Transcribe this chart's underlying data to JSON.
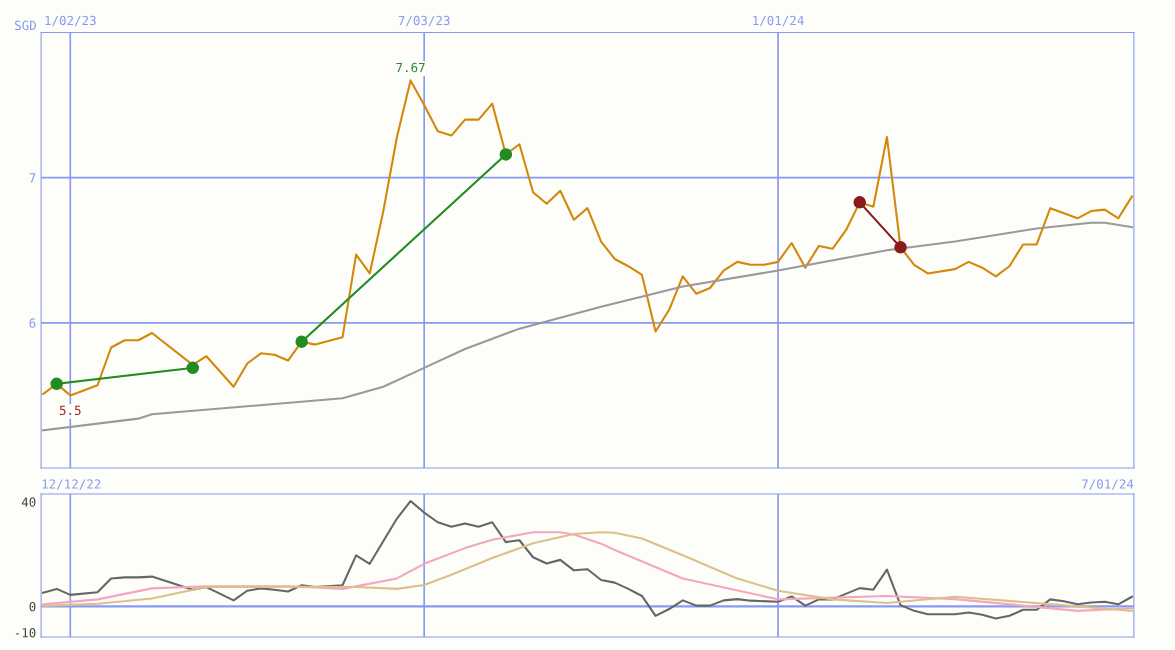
{
  "chart_data": [
    {
      "type": "line",
      "ylabel": "SGD",
      "xlim": [
        "2022-12-18",
        "2024-07-02"
      ],
      "ylim": [
        5.0,
        8.0
      ],
      "yticks": [
        6,
        7
      ],
      "xticks": [
        {
          "value": "2023-01-02",
          "label": "1/02/23"
        },
        {
          "value": "2023-07-03",
          "label": "7/03/23"
        },
        {
          "value": "2024-01-01",
          "label": "1/01/24"
        }
      ],
      "grid": true,
      "annotations": [
        {
          "text": "7.67",
          "x": "2023-06-26",
          "y": 7.67
        },
        {
          "text": "5.5",
          "x": "2023-01-02",
          "y": 5.5
        }
      ],
      "series": [
        {
          "color": "#d4880a",
          "x": [
            "2022-12-19",
            "2022-12-26",
            "2023-01-02",
            "2023-01-16",
            "2023-01-23",
            "2023-01-30",
            "2023-02-06",
            "2023-02-13",
            "2023-03-06",
            "2023-03-13",
            "2023-03-27",
            "2023-04-03",
            "2023-04-10",
            "2023-04-17",
            "2023-04-24",
            "2023-05-01",
            "2023-05-08",
            "2023-05-22",
            "2023-05-29",
            "2023-06-05",
            "2023-06-12",
            "2023-06-19",
            "2023-06-26",
            "2023-07-03",
            "2023-07-10",
            "2023-07-17",
            "2023-07-24",
            "2023-07-31",
            "2023-08-07",
            "2023-08-14",
            "2023-08-21",
            "2023-08-28",
            "2023-09-04",
            "2023-09-11",
            "2023-09-18",
            "2023-09-25",
            "2023-10-02",
            "2023-10-09",
            "2023-10-16",
            "2023-10-23",
            "2023-10-30",
            "2023-11-06",
            "2023-11-13",
            "2023-11-20",
            "2023-11-27",
            "2023-12-04",
            "2023-12-11",
            "2023-12-18",
            "2023-12-25",
            "2024-01-01",
            "2024-01-08",
            "2024-01-15",
            "2024-01-22",
            "2024-01-29",
            "2024-02-05",
            "2024-02-12",
            "2024-02-19",
            "2024-02-26",
            "2024-03-04",
            "2024-03-11",
            "2024-03-18",
            "2024-04-01",
            "2024-04-08",
            "2024-04-15",
            "2024-04-22",
            "2024-04-29",
            "2024-05-06",
            "2024-05-13",
            "2024-05-20",
            "2024-06-03",
            "2024-06-10",
            "2024-06-17",
            "2024-06-24",
            "2024-07-01"
          ],
          "values": [
            5.51,
            5.58,
            5.5,
            5.57,
            5.83,
            5.88,
            5.88,
            5.93,
            5.71,
            5.77,
            5.56,
            5.72,
            5.79,
            5.78,
            5.74,
            5.87,
            5.85,
            5.9,
            6.47,
            6.34,
            6.77,
            7.28,
            7.67,
            7.5,
            7.32,
            7.29,
            7.4,
            7.4,
            7.51,
            7.16,
            7.23,
            6.9,
            6.82,
            6.91,
            6.71,
            6.79,
            6.56,
            6.44,
            6.39,
            6.33,
            5.94,
            6.09,
            6.32,
            6.2,
            6.24,
            6.36,
            6.42,
            6.4,
            6.4,
            6.42,
            6.55,
            6.38,
            6.53,
            6.51,
            6.64,
            6.83,
            6.8,
            7.28,
            6.52,
            6.4,
            6.34,
            6.37,
            6.42,
            6.38,
            6.32,
            6.39,
            6.54,
            6.54,
            6.79,
            6.72,
            6.77,
            6.78,
            6.72,
            6.87
          ]
        },
        {
          "color": "#999999",
          "x": [
            "2022-12-19",
            "2023-02-06",
            "2023-02-13",
            "2023-05-22",
            "2023-06-12",
            "2023-07-03",
            "2023-07-24",
            "2023-08-21",
            "2023-10-02",
            "2023-11-13",
            "2024-01-01",
            "2024-02-26",
            "2024-04-01",
            "2024-05-13",
            "2024-06-10",
            "2024-06-17",
            "2024-07-01"
          ],
          "values": [
            5.26,
            5.34,
            5.37,
            5.48,
            5.56,
            5.69,
            5.82,
            5.96,
            6.11,
            6.25,
            6.36,
            6.5,
            6.56,
            6.65,
            6.69,
            6.69,
            6.66
          ]
        },
        {
          "color": "#228b22",
          "marker": "circle",
          "x": [
            "2022-12-26",
            "2023-03-06"
          ],
          "values": [
            5.58,
            5.69
          ]
        },
        {
          "color": "#228b22",
          "marker": "circle",
          "x": [
            "2023-05-01",
            "2023-08-14"
          ],
          "values": [
            5.87,
            7.16
          ]
        },
        {
          "color": "#8b1a1a",
          "marker": "circle",
          "x": [
            "2024-02-12",
            "2024-03-04"
          ],
          "values": [
            6.83,
            6.52
          ]
        }
      ]
    },
    {
      "type": "line",
      "xlim": [
        "2022-12-18",
        "2024-07-02"
      ],
      "ylim": [
        -11.7,
        43
      ],
      "yticks": [
        -10,
        0,
        40
      ],
      "xticks": [
        {
          "value": "2023-01-02",
          "label": null
        },
        {
          "value": "2023-07-03",
          "label": null
        },
        {
          "value": "2024-01-01",
          "label": null
        }
      ],
      "tick_labels": "y",
      "grid": "x",
      "ref_lines": [
        {
          "axis": "y",
          "value": 0,
          "color": "#8899ee"
        }
      ],
      "annotations": [
        "12/12/22",
        "7/01/24"
      ],
      "series": [
        {
          "color": "#666666",
          "x": [
            "2022-12-19",
            "2022-12-26",
            "2023-01-02",
            "2023-01-16",
            "2023-01-23",
            "2023-01-30",
            "2023-02-06",
            "2023-02-13",
            "2023-03-06",
            "2023-03-13",
            "2023-03-27",
            "2023-04-03",
            "2023-04-10",
            "2023-04-17",
            "2023-04-24",
            "2023-05-01",
            "2023-05-08",
            "2023-05-22",
            "2023-05-29",
            "2023-06-05",
            "2023-06-19",
            "2023-06-26",
            "2023-07-03",
            "2023-07-10",
            "2023-07-17",
            "2023-07-24",
            "2023-07-31",
            "2023-08-07",
            "2023-08-14",
            "2023-08-21",
            "2023-08-28",
            "2023-09-04",
            "2023-09-11",
            "2023-09-18",
            "2023-09-25",
            "2023-10-02",
            "2023-10-09",
            "2023-10-16",
            "2023-10-23",
            "2023-10-30",
            "2023-11-06",
            "2023-11-13",
            "2023-11-20",
            "2023-11-27",
            "2023-12-04",
            "2023-12-11",
            "2023-12-18",
            "2024-01-01",
            "2024-01-08",
            "2024-01-15",
            "2024-01-22",
            "2024-01-29",
            "2024-02-12",
            "2024-02-19",
            "2024-02-26",
            "2024-03-04",
            "2024-03-11",
            "2024-03-18",
            "2024-04-01",
            "2024-04-08",
            "2024-04-15",
            "2024-04-22",
            "2024-04-29",
            "2024-05-06",
            "2024-05-13",
            "2024-05-20",
            "2024-05-27",
            "2024-06-03",
            "2024-06-10",
            "2024-06-17",
            "2024-06-24",
            "2024-07-01"
          ],
          "values": [
            5.2,
            6.7,
            4.4,
            5.4,
            10.7,
            11.1,
            11.1,
            11.4,
            6.4,
            7.4,
            2.3,
            6.0,
            6.9,
            6.4,
            5.7,
            8.1,
            7.4,
            8.1,
            19.5,
            16.3,
            33.6,
            40.3,
            35.9,
            32.2,
            30.5,
            31.7,
            30.5,
            32.2,
            24.6,
            25.3,
            18.8,
            16.4,
            17.8,
            13.8,
            14.2,
            10.1,
            9.1,
            6.7,
            4.0,
            -3.6,
            -1.0,
            2.3,
            0.3,
            0.3,
            2.3,
            2.8,
            2.2,
            1.8,
            3.8,
            0.3,
            2.7,
            2.7,
            7.0,
            6.4,
            14.1,
            0.5,
            -1.7,
            -3.0,
            -3.0,
            -2.3,
            -3.2,
            -4.6,
            -3.6,
            -1.3,
            -1.3,
            2.7,
            2.0,
            0.8,
            1.5,
            1.8,
            0.8,
            3.7
          ]
        },
        {
          "color": "#f4a6be",
          "x": [
            "2022-12-19",
            "2023-01-16",
            "2023-02-13",
            "2023-03-13",
            "2023-04-24",
            "2023-05-22",
            "2023-06-19",
            "2023-07-03",
            "2023-07-24",
            "2023-08-07",
            "2023-08-28",
            "2023-09-11",
            "2023-09-18",
            "2023-10-02",
            "2023-10-09",
            "2023-11-13",
            "2024-01-01",
            "2024-02-26",
            "2024-04-01",
            "2024-05-06",
            "2024-06-03",
            "2024-07-01"
          ],
          "values": [
            0.8,
            2.7,
            6.9,
            7.7,
            7.7,
            6.7,
            10.7,
            16.3,
            22.3,
            25.5,
            28.4,
            28.4,
            27.5,
            24.0,
            21.6,
            10.7,
            2.7,
            4.0,
            2.8,
            0.3,
            -1.7,
            -0.7
          ]
        },
        {
          "color": "#dcc08c",
          "x": [
            "2022-12-19",
            "2023-01-16",
            "2023-02-13",
            "2023-03-13",
            "2023-04-24",
            "2023-05-29",
            "2023-06-19",
            "2023-07-03",
            "2023-07-17",
            "2023-08-07",
            "2023-08-28",
            "2023-09-18",
            "2023-10-02",
            "2023-10-09",
            "2023-10-23",
            "2023-11-13",
            "2023-12-11",
            "2024-01-01",
            "2024-01-29",
            "2024-02-26",
            "2024-04-01",
            "2024-05-06",
            "2024-06-03",
            "2024-07-01"
          ],
          "values": [
            0.2,
            1.0,
            3.0,
            7.4,
            7.5,
            7.4,
            6.7,
            8.2,
            12.1,
            18.5,
            24.2,
            27.7,
            28.4,
            28.2,
            26.0,
            19.6,
            10.7,
            6.0,
            2.7,
            1.3,
            3.7,
            1.7,
            0.0,
            -1.7
          ]
        }
      ]
    }
  ]
}
